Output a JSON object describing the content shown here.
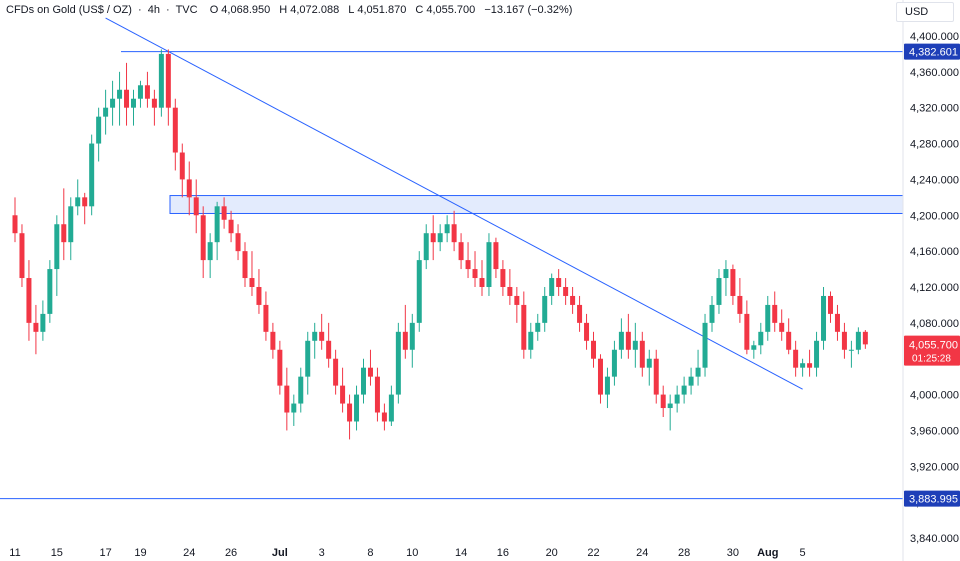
{
  "legend": {
    "symbol": "CFDs on Gold (US$ / OZ)",
    "interval": "4h",
    "source": "TVC",
    "open_label": "O",
    "open": "4,068.950",
    "high_label": "H",
    "high": "4,072.088",
    "low_label": "L",
    "low": "4,051.870",
    "close_label": "C",
    "close": "4,055.700",
    "change": "−13.167 (−0.32%)"
  },
  "currency": "USD",
  "colors": {
    "up": "#22ab94",
    "down": "#f23645",
    "line": "#2962ff",
    "zone_fill": "#e3ebfd",
    "axis_text": "#131722",
    "price_tag_bg": "#f23645",
    "level_tag_bg": "#1e3fb8"
  },
  "chart_data": {
    "type": "candlestick",
    "ylim": [
      3830,
      4410
    ],
    "y_ticks": [
      "4,400.000",
      "4,360.000",
      "4,320.000",
      "4,280.000",
      "4,240.000",
      "4,200.000",
      "4,160.000",
      "4,120.000",
      "4,080.000",
      "4,040.000",
      "4,000.000",
      "3,960.000",
      "3,920.000",
      "3,880.000",
      "3,840.000"
    ],
    "y_tick_values": [
      4400,
      4360,
      4320,
      4280,
      4240,
      4200,
      4160,
      4120,
      4080,
      4040,
      4000,
      3960,
      3920,
      3880,
      3840
    ],
    "x_ticks": [
      "11",
      "15",
      "17",
      "19",
      "24",
      "26",
      "Jul",
      "3",
      "8",
      "10",
      "14",
      "16",
      "20",
      "22",
      "24",
      "28",
      "30",
      "Aug",
      "5"
    ],
    "x_tick_index": [
      0,
      6,
      13,
      18,
      25,
      31,
      38,
      44,
      51,
      57,
      64,
      70,
      77,
      83,
      90,
      96,
      103,
      108,
      113
    ],
    "horizontal_levels": [
      {
        "value": 4382.601,
        "label": "4,382.601"
      },
      {
        "value": 3883.995,
        "label": "3,883.995"
      }
    ],
    "resistance_zone": {
      "low": 4202,
      "high": 4222
    },
    "trendline": {
      "start": {
        "index": 13,
        "value": 4420
      },
      "end": {
        "index": 113,
        "value": 4006
      }
    },
    "last_price": {
      "value": 4055.7,
      "label": "4,055.700",
      "countdown": "01:25:28"
    },
    "candles": [
      [
        4200,
        4220,
        4170,
        4180
      ],
      [
        4180,
        4190,
        4120,
        4130
      ],
      [
        4130,
        4150,
        4060,
        4080
      ],
      [
        4080,
        4100,
        4045,
        4070
      ],
      [
        4070,
        4105,
        4060,
        4090
      ],
      [
        4090,
        4150,
        4080,
        4140
      ],
      [
        4140,
        4200,
        4110,
        4190
      ],
      [
        4190,
        4230,
        4150,
        4170
      ],
      [
        4170,
        4220,
        4150,
        4210
      ],
      [
        4210,
        4240,
        4200,
        4220
      ],
      [
        4220,
        4225,
        4190,
        4210
      ],
      [
        4210,
        4290,
        4200,
        4280
      ],
      [
        4280,
        4320,
        4260,
        4310
      ],
      [
        4310,
        4340,
        4290,
        4320
      ],
      [
        4320,
        4350,
        4300,
        4330
      ],
      [
        4330,
        4360,
        4300,
        4340
      ],
      [
        4340,
        4370,
        4300,
        4320
      ],
      [
        4320,
        4340,
        4300,
        4330
      ],
      [
        4330,
        4350,
        4320,
        4345
      ],
      [
        4345,
        4360,
        4320,
        4330
      ],
      [
        4330,
        4340,
        4300,
        4320
      ],
      [
        4320,
        4385,
        4310,
        4380
      ],
      [
        4380,
        4385,
        4300,
        4320
      ],
      [
        4320,
        4330,
        4250,
        4270
      ],
      [
        4270,
        4280,
        4220,
        4240
      ],
      [
        4240,
        4260,
        4200,
        4220
      ],
      [
        4220,
        4240,
        4180,
        4200
      ],
      [
        4200,
        4210,
        4130,
        4150
      ],
      [
        4150,
        4180,
        4130,
        4170
      ],
      [
        4170,
        4215,
        4150,
        4210
      ],
      [
        4210,
        4220,
        4185,
        4195
      ],
      [
        4195,
        4205,
        4170,
        4180
      ],
      [
        4180,
        4190,
        4150,
        4160
      ],
      [
        4160,
        4170,
        4120,
        4130
      ],
      [
        4130,
        4160,
        4110,
        4120
      ],
      [
        4120,
        4140,
        4090,
        4100
      ],
      [
        4100,
        4115,
        4060,
        4070
      ],
      [
        4070,
        4080,
        4040,
        4050
      ],
      [
        4050,
        4060,
        4000,
        4010
      ],
      [
        4010,
        4030,
        3960,
        3980
      ],
      [
        3980,
        4000,
        3965,
        3990
      ],
      [
        3990,
        4030,
        3980,
        4020
      ],
      [
        4020,
        4070,
        4000,
        4060
      ],
      [
        4060,
        4080,
        4040,
        4070
      ],
      [
        4070,
        4090,
        4050,
        4060
      ],
      [
        4060,
        4080,
        4030,
        4040
      ],
      [
        4040,
        4050,
        4000,
        4010
      ],
      [
        4010,
        4030,
        3980,
        3990
      ],
      [
        3990,
        4000,
        3950,
        3970
      ],
      [
        3970,
        4010,
        3960,
        4000
      ],
      [
        4000,
        4040,
        3990,
        4030
      ],
      [
        4030,
        4050,
        4010,
        4020
      ],
      [
        4020,
        4030,
        3970,
        3980
      ],
      [
        3980,
        3990,
        3960,
        3970
      ],
      [
        3970,
        4010,
        3965,
        4000
      ],
      [
        4000,
        4080,
        3990,
        4070
      ],
      [
        4070,
        4100,
        4040,
        4050
      ],
      [
        4050,
        4090,
        4030,
        4080
      ],
      [
        4080,
        4160,
        4070,
        4150
      ],
      [
        4150,
        4190,
        4140,
        4180
      ],
      [
        4180,
        4200,
        4150,
        4170
      ],
      [
        4170,
        4190,
        4160,
        4180
      ],
      [
        4180,
        4200,
        4170,
        4190
      ],
      [
        4190,
        4205,
        4160,
        4170
      ],
      [
        4170,
        4180,
        4140,
        4150
      ],
      [
        4150,
        4170,
        4130,
        4140
      ],
      [
        4140,
        4160,
        4120,
        4130
      ],
      [
        4130,
        4150,
        4110,
        4120
      ],
      [
        4120,
        4180,
        4110,
        4170
      ],
      [
        4170,
        4175,
        4130,
        4140
      ],
      [
        4140,
        4150,
        4110,
        4120
      ],
      [
        4120,
        4140,
        4100,
        4110
      ],
      [
        4110,
        4120,
        4080,
        4100
      ],
      [
        4100,
        4115,
        4040,
        4050
      ],
      [
        4050,
        4080,
        4040,
        4070
      ],
      [
        4070,
        4090,
        4060,
        4080
      ],
      [
        4080,
        4120,
        4070,
        4110
      ],
      [
        4110,
        4135,
        4100,
        4130
      ],
      [
        4130,
        4140,
        4110,
        4120
      ],
      [
        4120,
        4130,
        4100,
        4110
      ],
      [
        4110,
        4120,
        4090,
        4100
      ],
      [
        4100,
        4110,
        4070,
        4080
      ],
      [
        4080,
        4090,
        4050,
        4060
      ],
      [
        4060,
        4070,
        4030,
        4040
      ],
      [
        4040,
        4045,
        3990,
        4000
      ],
      [
        4000,
        4030,
        3985,
        4020
      ],
      [
        4020,
        4060,
        4010,
        4050
      ],
      [
        4050,
        4085,
        4040,
        4070
      ],
      [
        4070,
        4090,
        4040,
        4050
      ],
      [
        4050,
        4080,
        4030,
        4060
      ],
      [
        4060,
        4070,
        4020,
        4030
      ],
      [
        4030,
        4050,
        4010,
        4040
      ],
      [
        4040,
        4050,
        3990,
        4000
      ],
      [
        4000,
        4010,
        3975,
        3985
      ],
      [
        3985,
        4000,
        3960,
        3990
      ],
      [
        3990,
        4010,
        3980,
        4000
      ],
      [
        4000,
        4020,
        3990,
        4010
      ],
      [
        4010,
        4030,
        4000,
        4020
      ],
      [
        4020,
        4050,
        4010,
        4030
      ],
      [
        4030,
        4090,
        4020,
        4080
      ],
      [
        4080,
        4110,
        4070,
        4100
      ],
      [
        4100,
        4140,
        4090,
        4130
      ],
      [
        4130,
        4150,
        4110,
        4140
      ],
      [
        4140,
        4145,
        4100,
        4110
      ],
      [
        4110,
        4130,
        4080,
        4090
      ],
      [
        4090,
        4105,
        4045,
        4050
      ],
      [
        4050,
        4060,
        4040,
        4055
      ],
      [
        4055,
        4080,
        4045,
        4070
      ],
      [
        4070,
        4110,
        4060,
        4100
      ],
      [
        4100,
        4115,
        4070,
        4080
      ],
      [
        4080,
        4095,
        4060,
        4070
      ],
      [
        4070,
        4085,
        4045,
        4050
      ],
      [
        4050,
        4060,
        4020,
        4030
      ],
      [
        4030,
        4040,
        4020,
        4035
      ],
      [
        4035,
        4050,
        4020,
        4030
      ],
      [
        4030,
        4070,
        4020,
        4060
      ],
      [
        4060,
        4120,
        4050,
        4110
      ],
      [
        4110,
        4115,
        4080,
        4090
      ],
      [
        4090,
        4100,
        4060,
        4070
      ],
      [
        4070,
        4080,
        4040,
        4050
      ],
      [
        4050,
        4060,
        4030,
        4050
      ],
      [
        4050,
        4075,
        4045,
        4070
      ],
      [
        4070,
        4072,
        4051,
        4056
      ]
    ]
  }
}
